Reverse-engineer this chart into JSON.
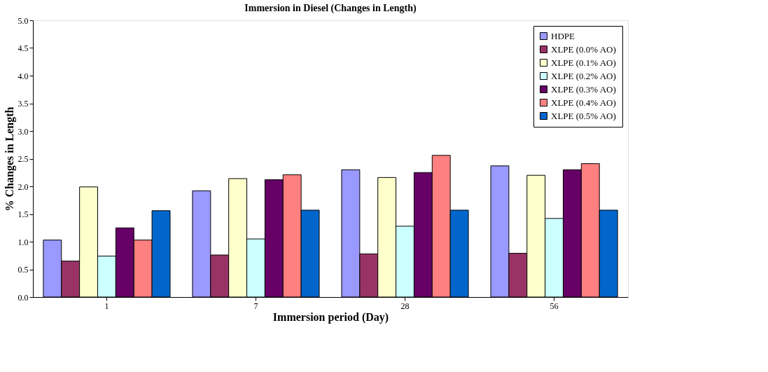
{
  "chart_data": {
    "type": "bar",
    "title": "Immersion in Diesel (Changes in Length)",
    "xlabel": "Immersion period (Day)",
    "ylabel": "% Changes in Length",
    "categories": [
      "1",
      "7",
      "28",
      "56"
    ],
    "series": [
      {
        "name": "HDPE",
        "color": "#9999ff",
        "values": [
          1.03,
          1.92,
          2.3,
          2.37
        ]
      },
      {
        "name": "XLPE (0.0% AO)",
        "color": "#993366",
        "values": [
          0.65,
          0.76,
          0.78,
          0.79
        ]
      },
      {
        "name": "XLPE (0.1% AO)",
        "color": "#ffffcc",
        "values": [
          1.99,
          2.14,
          2.16,
          2.2
        ]
      },
      {
        "name": "XLPE (0.2% AO)",
        "color": "#ccffff",
        "values": [
          0.74,
          1.05,
          1.28,
          1.42
        ]
      },
      {
        "name": "XLPE (0.3% AO)",
        "color": "#660066",
        "values": [
          1.25,
          2.12,
          2.25,
          2.3
        ]
      },
      {
        "name": "XLPE (0.4% AO)",
        "color": "#ff8080",
        "values": [
          1.03,
          2.21,
          2.56,
          2.41
        ]
      },
      {
        "name": "XLPE (0.5% AO)",
        "color": "#0066cc",
        "values": [
          1.56,
          1.57,
          1.57,
          1.57
        ]
      }
    ],
    "ylim": [
      0,
      5
    ],
    "yticks": [
      {
        "value": 0,
        "label": "0.0"
      },
      {
        "value": 0.5,
        "label": "0.5"
      },
      {
        "value": 1,
        "label": "1.0"
      },
      {
        "value": 1.5,
        "label": "1.5"
      },
      {
        "value": 2,
        "label": "2.0"
      },
      {
        "value": 2.5,
        "label": "2.5"
      },
      {
        "value": 3,
        "label": "3.0"
      },
      {
        "value": 3.5,
        "label": "3.5"
      },
      {
        "value": 4,
        "label": "4.0"
      },
      {
        "value": 4.5,
        "label": "4.5"
      },
      {
        "value": 5,
        "label": "5.0"
      }
    ],
    "grid": false,
    "legend": "top right"
  }
}
